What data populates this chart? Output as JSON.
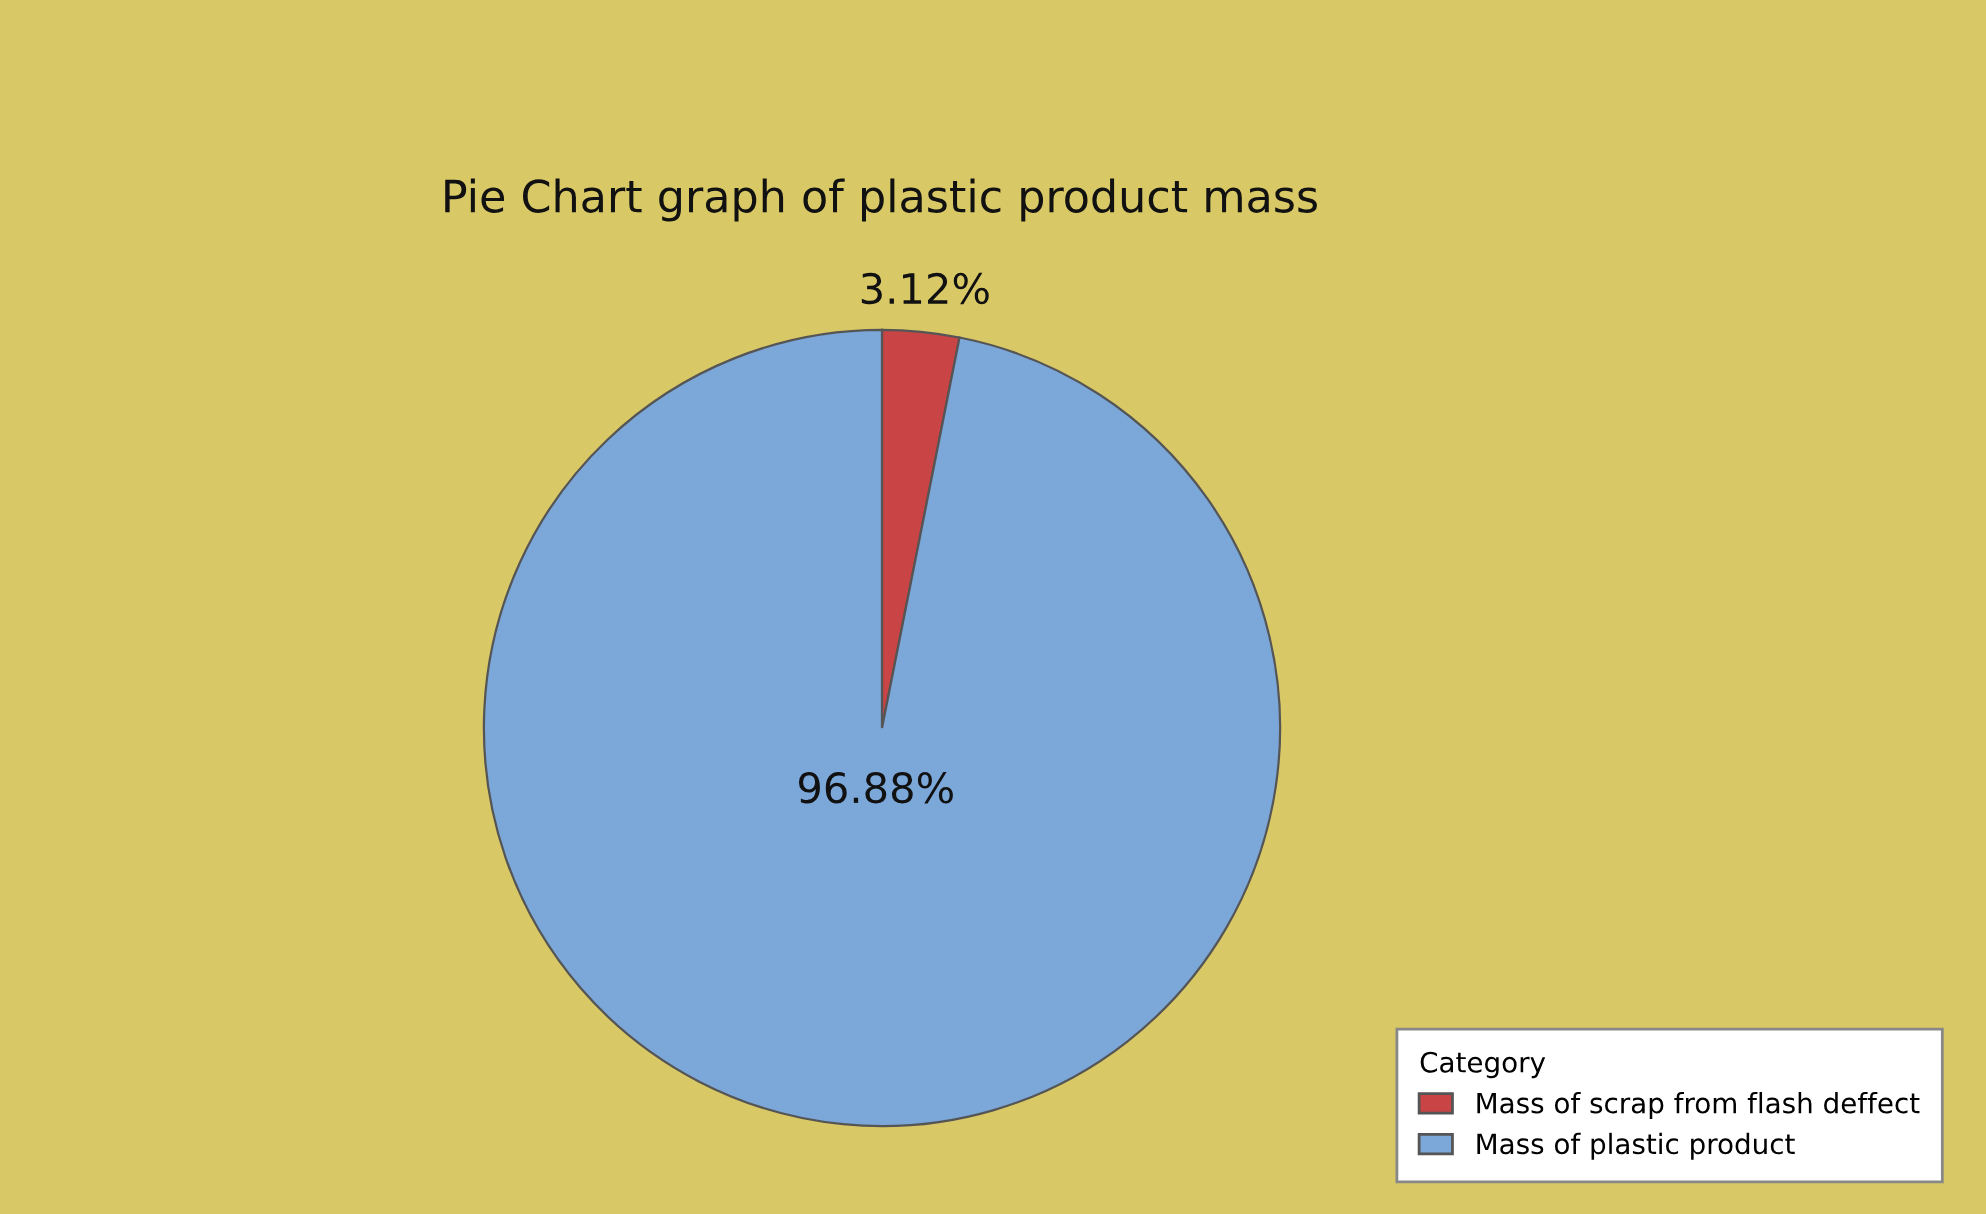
{
  "chart_data": {
    "type": "pie",
    "title": "Pie Chart graph of plastic product mass",
    "categories": [
      "Mass of scrap from flash deffect",
      "Mass of plastic product"
    ],
    "values": [
      3.12,
      96.88
    ],
    "colors": [
      "#c94444",
      "#7ba7d9"
    ],
    "value_labels": [
      "3.12%",
      "96.88%"
    ],
    "legend_title": "Category",
    "legend": "bottom right"
  }
}
